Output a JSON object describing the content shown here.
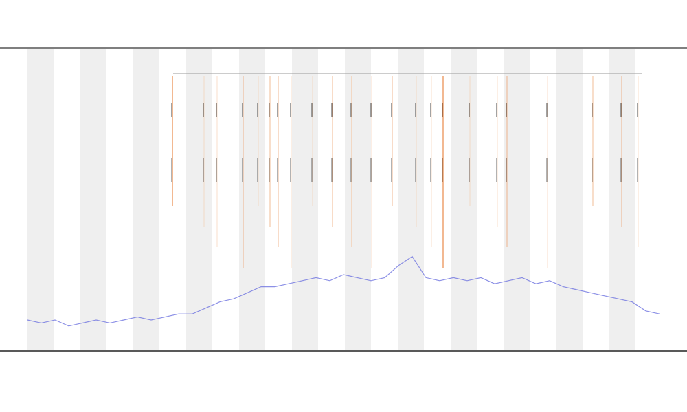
{
  "chart_data": {
    "type": "line",
    "color": "#6f74e0",
    "values": [
      10,
      9,
      10,
      8,
      9,
      10,
      9,
      10,
      11,
      10,
      11,
      12,
      12,
      14,
      16,
      17,
      19,
      21,
      21,
      22,
      23,
      24,
      23,
      25,
      24,
      23,
      24,
      28,
      31,
      24,
      23,
      24,
      23,
      24,
      22,
      23,
      24,
      22,
      23,
      21,
      20,
      19,
      18,
      17,
      16,
      13,
      12
    ],
    "ylim": [
      0,
      100
    ]
  }
}
